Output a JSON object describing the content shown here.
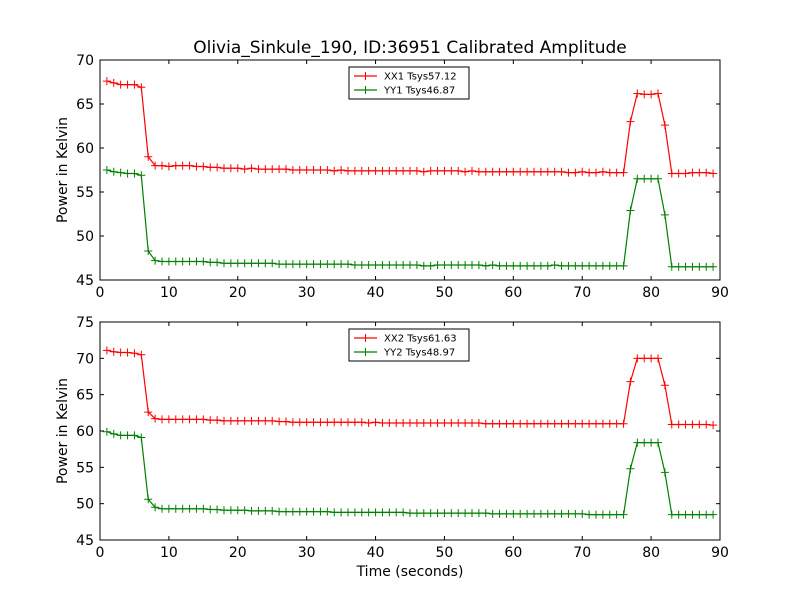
{
  "figure": {
    "title": "Olivia_Sinkule_190, ID:36951 Calibrated Amplitude"
  },
  "chart_data": [
    {
      "type": "line",
      "title": "Olivia_Sinkule_190, ID:36951 Calibrated Amplitude",
      "xlabel": "",
      "ylabel": "Power in Kelvin",
      "xlim": [
        0,
        90
      ],
      "ylim": [
        45,
        70
      ],
      "xticks": [
        0,
        10,
        20,
        30,
        40,
        50,
        60,
        70,
        80,
        90
      ],
      "yticks": [
        45,
        50,
        55,
        60,
        65,
        70
      ],
      "legend_position": "top-center",
      "x": [
        1,
        2,
        3,
        4,
        5,
        6,
        7,
        8,
        9,
        10,
        11,
        12,
        13,
        14,
        15,
        16,
        17,
        18,
        19,
        20,
        21,
        22,
        23,
        24,
        25,
        26,
        27,
        28,
        29,
        30,
        31,
        32,
        33,
        34,
        35,
        36,
        37,
        38,
        39,
        40,
        41,
        42,
        43,
        44,
        45,
        46,
        47,
        48,
        49,
        50,
        51,
        52,
        53,
        54,
        55,
        56,
        57,
        58,
        59,
        60,
        61,
        62,
        63,
        64,
        65,
        66,
        67,
        68,
        69,
        70,
        71,
        72,
        73,
        74,
        75,
        76,
        77,
        78,
        79,
        80,
        81,
        82,
        83,
        84,
        85,
        86,
        87,
        88,
        89
      ],
      "series": [
        {
          "name": "XX1 Tsys57.12",
          "color": "#ff0000",
          "values": [
            67.6,
            67.4,
            67.2,
            67.2,
            67.2,
            66.9,
            59.0,
            58.0,
            58.0,
            57.9,
            58.0,
            58.0,
            58.0,
            57.9,
            57.9,
            57.8,
            57.8,
            57.7,
            57.7,
            57.7,
            57.6,
            57.7,
            57.6,
            57.6,
            57.6,
            57.6,
            57.6,
            57.5,
            57.5,
            57.5,
            57.5,
            57.5,
            57.5,
            57.4,
            57.5,
            57.4,
            57.4,
            57.4,
            57.4,
            57.4,
            57.4,
            57.4,
            57.4,
            57.4,
            57.4,
            57.4,
            57.3,
            57.4,
            57.4,
            57.4,
            57.4,
            57.4,
            57.3,
            57.4,
            57.3,
            57.3,
            57.3,
            57.3,
            57.3,
            57.3,
            57.3,
            57.3,
            57.3,
            57.3,
            57.3,
            57.3,
            57.3,
            57.2,
            57.2,
            57.3,
            57.2,
            57.2,
            57.3,
            57.2,
            57.2,
            57.2,
            63.0,
            66.2,
            66.1,
            66.1,
            66.2,
            62.6,
            57.1,
            57.1,
            57.1,
            57.2,
            57.2,
            57.2,
            57.1
          ]
        },
        {
          "name": "YY1 Tsys46.87",
          "color": "#008000",
          "values": [
            57.5,
            57.3,
            57.2,
            57.1,
            57.1,
            56.9,
            48.3,
            47.2,
            47.1,
            47.1,
            47.1,
            47.1,
            47.1,
            47.1,
            47.1,
            47.0,
            47.0,
            46.9,
            46.9,
            46.9,
            46.9,
            46.9,
            46.9,
            46.9,
            46.9,
            46.8,
            46.8,
            46.8,
            46.8,
            46.8,
            46.8,
            46.8,
            46.8,
            46.8,
            46.8,
            46.8,
            46.7,
            46.7,
            46.7,
            46.7,
            46.7,
            46.7,
            46.7,
            46.7,
            46.7,
            46.7,
            46.6,
            46.6,
            46.7,
            46.7,
            46.7,
            46.7,
            46.7,
            46.7,
            46.7,
            46.6,
            46.7,
            46.6,
            46.6,
            46.6,
            46.6,
            46.6,
            46.6,
            46.6,
            46.6,
            46.7,
            46.6,
            46.6,
            46.6,
            46.6,
            46.6,
            46.6,
            46.6,
            46.6,
            46.6,
            46.6,
            52.9,
            56.5,
            56.5,
            56.5,
            56.5,
            52.4,
            46.5,
            46.5,
            46.5,
            46.5,
            46.5,
            46.5,
            46.5
          ]
        }
      ]
    },
    {
      "type": "line",
      "title": "",
      "xlabel": "Time (seconds)",
      "ylabel": "Power in Kelvin",
      "xlim": [
        0,
        90
      ],
      "ylim": [
        45,
        75
      ],
      "xticks": [
        0,
        10,
        20,
        30,
        40,
        50,
        60,
        70,
        80,
        90
      ],
      "yticks": [
        45,
        50,
        55,
        60,
        65,
        70,
        75
      ],
      "legend_position": "top-center",
      "x": [
        1,
        2,
        3,
        4,
        5,
        6,
        7,
        8,
        9,
        10,
        11,
        12,
        13,
        14,
        15,
        16,
        17,
        18,
        19,
        20,
        21,
        22,
        23,
        24,
        25,
        26,
        27,
        28,
        29,
        30,
        31,
        32,
        33,
        34,
        35,
        36,
        37,
        38,
        39,
        40,
        41,
        42,
        43,
        44,
        45,
        46,
        47,
        48,
        49,
        50,
        51,
        52,
        53,
        54,
        55,
        56,
        57,
        58,
        59,
        60,
        61,
        62,
        63,
        64,
        65,
        66,
        67,
        68,
        69,
        70,
        71,
        72,
        73,
        74,
        75,
        76,
        77,
        78,
        79,
        80,
        81,
        82,
        83,
        84,
        85,
        86,
        87,
        88,
        89
      ],
      "series": [
        {
          "name": "XX2 Tsys61.63",
          "color": "#ff0000",
          "values": [
            71.1,
            70.9,
            70.8,
            70.8,
            70.7,
            70.5,
            62.6,
            61.7,
            61.6,
            61.6,
            61.6,
            61.6,
            61.6,
            61.6,
            61.6,
            61.5,
            61.5,
            61.4,
            61.4,
            61.4,
            61.4,
            61.4,
            61.4,
            61.4,
            61.4,
            61.3,
            61.3,
            61.2,
            61.2,
            61.2,
            61.2,
            61.2,
            61.2,
            61.2,
            61.2,
            61.2,
            61.2,
            61.2,
            61.1,
            61.2,
            61.1,
            61.1,
            61.1,
            61.1,
            61.1,
            61.1,
            61.1,
            61.1,
            61.1,
            61.1,
            61.1,
            61.1,
            61.1,
            61.1,
            61.1,
            61.0,
            61.0,
            61.0,
            61.0,
            61.0,
            61.0,
            61.0,
            61.0,
            61.0,
            61.0,
            61.0,
            61.0,
            61.0,
            61.0,
            61.0,
            61.0,
            61.0,
            61.0,
            61.0,
            61.0,
            61.0,
            66.8,
            70.0,
            70.0,
            70.0,
            70.0,
            66.3,
            60.9,
            60.9,
            60.9,
            60.9,
            60.9,
            60.9,
            60.8
          ]
        },
        {
          "name": "YY2 Tsys48.97",
          "color": "#008000",
          "values": [
            59.9,
            59.6,
            59.4,
            59.4,
            59.4,
            59.1,
            50.6,
            49.5,
            49.3,
            49.3,
            49.3,
            49.3,
            49.3,
            49.3,
            49.3,
            49.2,
            49.2,
            49.1,
            49.1,
            49.1,
            49.1,
            49.0,
            49.0,
            49.0,
            49.0,
            48.9,
            48.9,
            48.9,
            48.9,
            48.9,
            48.9,
            48.9,
            48.9,
            48.8,
            48.8,
            48.8,
            48.8,
            48.8,
            48.8,
            48.8,
            48.8,
            48.8,
            48.8,
            48.8,
            48.7,
            48.7,
            48.7,
            48.7,
            48.7,
            48.7,
            48.7,
            48.7,
            48.7,
            48.7,
            48.7,
            48.7,
            48.6,
            48.6,
            48.6,
            48.6,
            48.6,
            48.6,
            48.6,
            48.6,
            48.6,
            48.6,
            48.6,
            48.6,
            48.6,
            48.6,
            48.5,
            48.5,
            48.5,
            48.5,
            48.5,
            48.5,
            54.8,
            58.4,
            58.4,
            58.4,
            58.4,
            54.3,
            48.5,
            48.5,
            48.5,
            48.5,
            48.5,
            48.5,
            48.5
          ]
        }
      ]
    }
  ]
}
